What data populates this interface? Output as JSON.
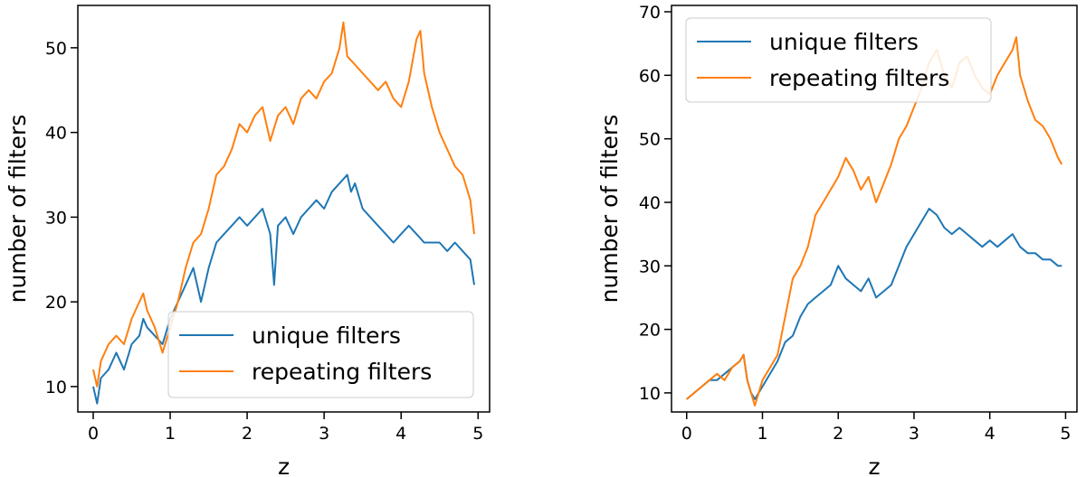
{
  "chart_data": [
    {
      "type": "line",
      "title": "",
      "xlabel": "z",
      "ylabel": "number of filters",
      "xlim": [
        -0.2,
        5.15
      ],
      "ylim": [
        7,
        55
      ],
      "xticks": [
        0,
        1,
        2,
        3,
        4,
        5
      ],
      "yticks": [
        10,
        20,
        30,
        40,
        50
      ],
      "grid": false,
      "legend": "lower-right",
      "series": [
        {
          "name": "unique filters",
          "color": "#1f77b4",
          "x": [
            0,
            0.05,
            0.1,
            0.2,
            0.3,
            0.4,
            0.5,
            0.6,
            0.65,
            0.7,
            0.8,
            0.9,
            1.0,
            1.1,
            1.2,
            1.3,
            1.4,
            1.5,
            1.6,
            1.7,
            1.8,
            1.9,
            2.0,
            2.1,
            2.2,
            2.3,
            2.35,
            2.4,
            2.5,
            2.6,
            2.7,
            2.8,
            2.9,
            3.0,
            3.1,
            3.2,
            3.3,
            3.35,
            3.4,
            3.5,
            3.6,
            3.7,
            3.8,
            3.9,
            4.0,
            4.1,
            4.2,
            4.3,
            4.4,
            4.5,
            4.6,
            4.7,
            4.8,
            4.9,
            4.95
          ],
          "y": [
            10,
            8,
            11,
            12,
            14,
            12,
            15,
            16,
            18,
            17,
            16,
            15,
            18,
            20,
            22,
            24,
            20,
            24,
            27,
            28,
            29,
            30,
            29,
            30,
            31,
            28,
            22,
            29,
            30,
            28,
            30,
            31,
            32,
            31,
            33,
            34,
            35,
            33,
            34,
            31,
            30,
            29,
            28,
            27,
            28,
            29,
            28,
            27,
            27,
            27,
            26,
            27,
            26,
            25,
            22
          ]
        },
        {
          "name": "repeating filters",
          "color": "#ff7f0e",
          "x": [
            0,
            0.05,
            0.1,
            0.2,
            0.3,
            0.4,
            0.5,
            0.6,
            0.65,
            0.7,
            0.8,
            0.9,
            1.0,
            1.1,
            1.2,
            1.3,
            1.4,
            1.5,
            1.6,
            1.7,
            1.8,
            1.9,
            2.0,
            2.1,
            2.2,
            2.3,
            2.4,
            2.5,
            2.6,
            2.7,
            2.8,
            2.9,
            3.0,
            3.1,
            3.2,
            3.25,
            3.3,
            3.4,
            3.5,
            3.6,
            3.7,
            3.8,
            3.9,
            4.0,
            4.1,
            4.2,
            4.25,
            4.3,
            4.4,
            4.5,
            4.6,
            4.7,
            4.8,
            4.9,
            4.95
          ],
          "y": [
            12,
            10,
            13,
            15,
            16,
            15,
            18,
            20,
            21,
            19,
            17,
            14,
            17,
            20,
            24,
            27,
            28,
            31,
            35,
            36,
            38,
            41,
            40,
            42,
            43,
            39,
            42,
            43,
            41,
            44,
            45,
            44,
            46,
            47,
            50,
            53,
            49,
            48,
            47,
            46,
            45,
            46,
            44,
            43,
            46,
            51,
            52,
            47,
            43,
            40,
            38,
            36,
            35,
            32,
            28
          ]
        }
      ]
    },
    {
      "type": "line",
      "title": "",
      "xlabel": "z",
      "ylabel": "number of filters",
      "xlim": [
        -0.2,
        5.15
      ],
      "ylim": [
        7,
        71
      ],
      "xticks": [
        0,
        1,
        2,
        3,
        4,
        5
      ],
      "yticks": [
        10,
        20,
        30,
        40,
        50,
        60,
        70
      ],
      "grid": false,
      "legend": "top-left",
      "series": [
        {
          "name": "unique filters",
          "color": "#1f77b4",
          "x": [
            0,
            0.1,
            0.2,
            0.3,
            0.4,
            0.5,
            0.6,
            0.7,
            0.75,
            0.8,
            0.85,
            0.9,
            1.0,
            1.1,
            1.2,
            1.3,
            1.4,
            1.5,
            1.6,
            1.7,
            1.8,
            1.9,
            2.0,
            2.1,
            2.2,
            2.3,
            2.4,
            2.5,
            2.6,
            2.7,
            2.8,
            2.9,
            3.0,
            3.1,
            3.2,
            3.3,
            3.4,
            3.5,
            3.6,
            3.7,
            3.8,
            3.9,
            4.0,
            4.1,
            4.2,
            4.3,
            4.4,
            4.5,
            4.6,
            4.7,
            4.8,
            4.9,
            4.95
          ],
          "y": [
            9,
            10,
            11,
            12,
            12,
            13,
            14,
            15,
            16,
            12,
            10,
            9,
            11,
            13,
            15,
            18,
            19,
            22,
            24,
            25,
            26,
            27,
            30,
            28,
            27,
            26,
            28,
            25,
            26,
            27,
            30,
            33,
            35,
            37,
            39,
            38,
            36,
            35,
            36,
            35,
            34,
            33,
            34,
            33,
            34,
            35,
            33,
            32,
            32,
            31,
            31,
            30,
            30
          ]
        },
        {
          "name": "repeating filters",
          "color": "#ff7f0e",
          "x": [
            0,
            0.1,
            0.2,
            0.3,
            0.4,
            0.5,
            0.6,
            0.7,
            0.75,
            0.8,
            0.85,
            0.9,
            1.0,
            1.1,
            1.2,
            1.3,
            1.4,
            1.5,
            1.6,
            1.7,
            1.8,
            1.9,
            2.0,
            2.1,
            2.2,
            2.3,
            2.4,
            2.5,
            2.6,
            2.7,
            2.8,
            2.9,
            3.0,
            3.1,
            3.2,
            3.3,
            3.4,
            3.5,
            3.6,
            3.7,
            3.8,
            3.9,
            4.0,
            4.1,
            4.2,
            4.3,
            4.35,
            4.4,
            4.5,
            4.6,
            4.7,
            4.8,
            4.9,
            4.95
          ],
          "y": [
            9,
            10,
            11,
            12,
            13,
            12,
            14,
            15,
            16,
            12,
            10,
            8,
            12,
            14,
            16,
            22,
            28,
            30,
            33,
            38,
            40,
            42,
            44,
            47,
            45,
            42,
            44,
            40,
            43,
            46,
            50,
            52,
            55,
            58,
            62,
            64,
            60,
            58,
            62,
            63,
            60,
            58,
            57,
            60,
            62,
            64,
            66,
            60,
            56,
            53,
            52,
            50,
            47,
            46
          ]
        }
      ]
    }
  ]
}
